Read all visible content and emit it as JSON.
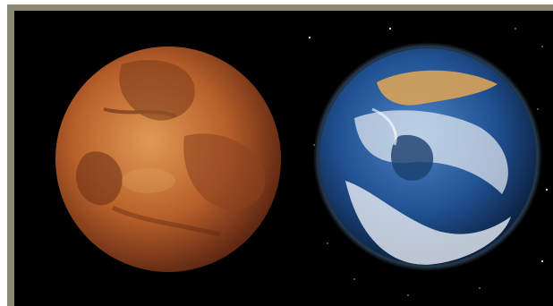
{
  "image": {
    "subjects": [
      "planet-mars",
      "planet-earth"
    ],
    "colors": {
      "frame": "#8a8a72",
      "background": "#000000",
      "mars_light": "#e09a55",
      "mars_mid": "#b8602a",
      "mars_dark": "#5a2410",
      "earth_ocean_light": "#4f86c6",
      "earth_ocean_mid": "#1f4f8f",
      "earth_ocean_dark": "#0a1e3c",
      "earth_cloud": "#e8eef4",
      "earth_land": "#d9a35a"
    }
  }
}
